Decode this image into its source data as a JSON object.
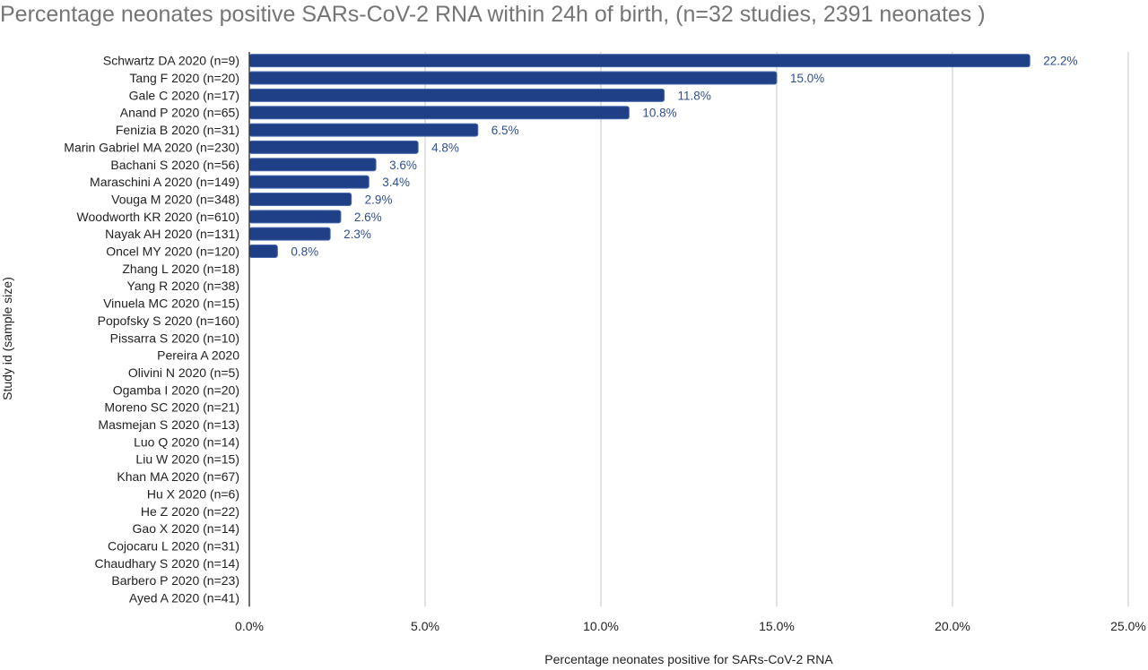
{
  "chart_data": {
    "type": "bar",
    "orientation": "horizontal",
    "title": "Percentage neonates positive SARs-CoV-2 RNA within 24h of birth, (n=32 studies, 2391 neonates )",
    "xlabel": "Percentage neonates positive for SARs-CoV-2 RNA",
    "ylabel": "Study id (sample size)",
    "xlim": [
      0,
      25
    ],
    "xticks": [
      "0.0%",
      "5.0%",
      "10.0%",
      "15.0%",
      "20.0%",
      "25.0%"
    ],
    "grid": true,
    "bar_color": "#1f3f86",
    "categories": [
      "Schwartz DA 2020 (n=9)",
      "Tang F 2020 (n=20)",
      "Gale C 2020 (n=17)",
      "Anand P 2020 (n=65)",
      "Fenizia B 2020 (n=31)",
      "Marin Gabriel MA 2020 (n=230)",
      "Bachani S 2020 (n=56)",
      "Maraschini A 2020 (n=149)",
      "Vouga M 2020 (n=348)",
      "Woodworth KR 2020 (n=610)",
      "Nayak AH 2020 (n=131)",
      "Oncel MY 2020 (n=120)",
      "Zhang L 2020 (n=18)",
      "Yang R 2020 (n=38)",
      "Vinuela MC 2020 (n=15)",
      "Popofsky S 2020 (n=160)",
      "Pissarra S 2020 (n=10)",
      "Pereira A 2020",
      "Olivini N 2020 (n=5)",
      "Ogamba I 2020 (n=20)",
      "Moreno SC 2020 (n=21)",
      "Masmejan S 2020 (n=13)",
      "Luo Q 2020 (n=14)",
      "Liu W 2020 (n=15)",
      "Khan MA 2020 (n=67)",
      "Hu X 2020 (n=6)",
      "He Z 2020 (n=22)",
      "Gao X 2020 (n=14)",
      "Cojocaru L 2020 (n=31)",
      "Chaudhary S 2020 (n=14)",
      "Barbero P 2020 (n=23)",
      "Ayed A 2020 (n=41)"
    ],
    "values": [
      22.2,
      15.0,
      11.8,
      10.8,
      6.5,
      4.8,
      3.6,
      3.4,
      2.9,
      2.6,
      2.3,
      0.8,
      0,
      0,
      0,
      0,
      0,
      0,
      0,
      0,
      0,
      0,
      0,
      0,
      0,
      0,
      0,
      0,
      0,
      0,
      0,
      0
    ],
    "data_labels": [
      "22.2%",
      "15.0%",
      "11.8%",
      "10.8%",
      "6.5%",
      "4.8%",
      "3.6%",
      "3.4%",
      "2.9%",
      "2.6%",
      "2.3%",
      "0.8%",
      "",
      "",
      "",
      "",
      "",
      "",
      "",
      "",
      "",
      "",
      "",
      "",
      "",
      "",
      "",
      "",
      "",
      "",
      "",
      ""
    ]
  }
}
